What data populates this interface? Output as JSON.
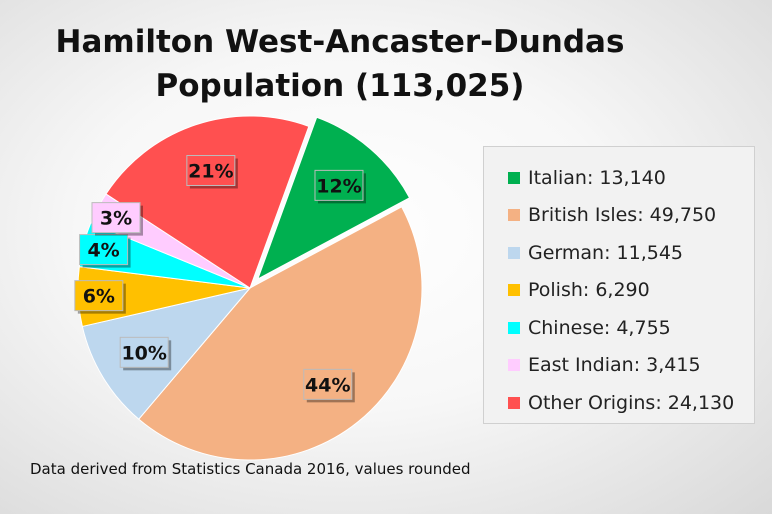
{
  "chart_data": {
    "type": "pie",
    "title": [
      "Hamilton West-Ancaster-Dundas",
      "Population (113,025)"
    ],
    "categories": [
      "Italian",
      "British Isles",
      "German",
      "Polish",
      "Chinese",
      "East Indian",
      "Other Origins"
    ],
    "values": [
      13140,
      49750,
      11545,
      6290,
      4755,
      3415,
      24130
    ],
    "value_labels": [
      "13,140",
      "49,750",
      "11,545",
      "6,290",
      "4,755",
      "3,415",
      "24,130"
    ],
    "percent_labels": [
      "12%",
      "44%",
      "10%",
      "6%",
      "4%",
      "3%",
      "21%"
    ],
    "colors": [
      "#00B050",
      "#F4B183",
      "#BDD7EE",
      "#FFC000",
      "#00FFFF",
      "#FFCCFF",
      "#FF5050"
    ],
    "exploded": [
      "Italian"
    ],
    "legend_placement": "right",
    "footnote": "Data derived from Statistics Canada 2016, values rounded"
  }
}
